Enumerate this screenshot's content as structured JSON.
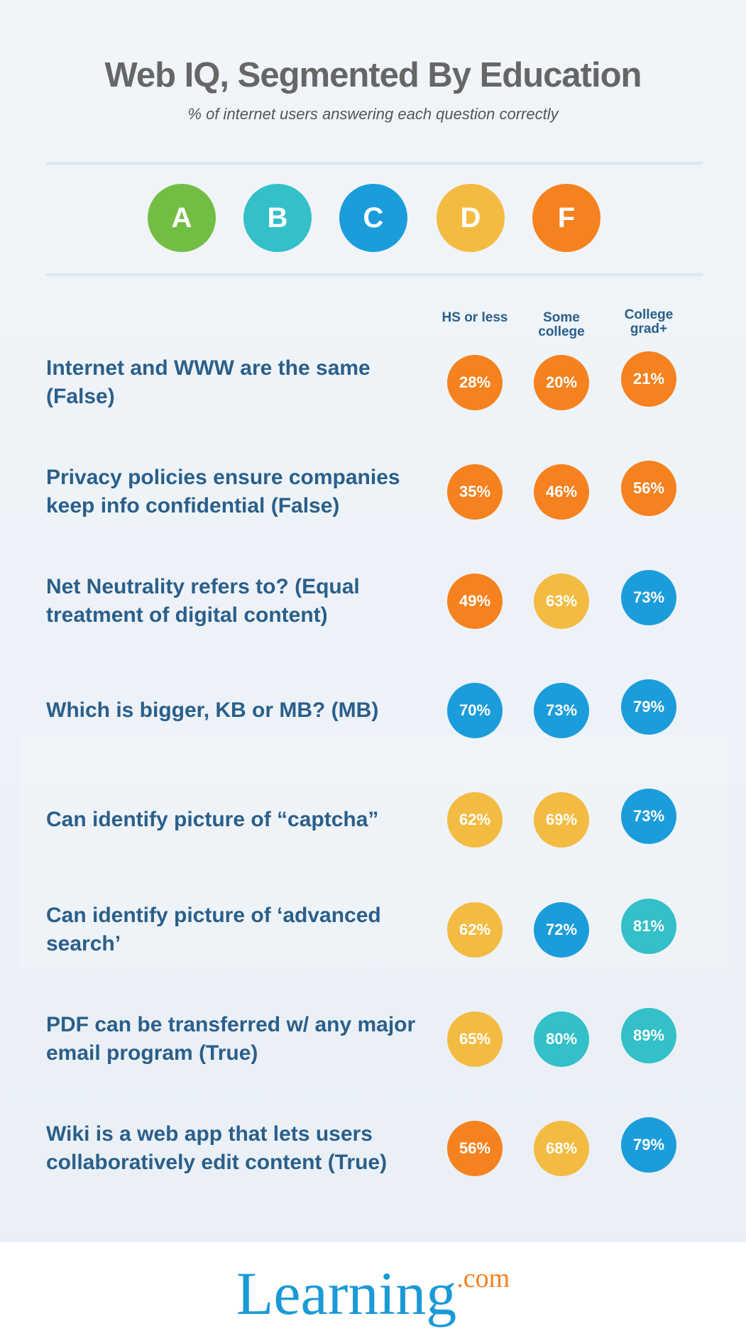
{
  "header": {
    "title": "Web IQ, Segmented By Education",
    "subtitle": "% of internet users answering each question correctly"
  },
  "legend": [
    {
      "label": "A",
      "color": "#72be44"
    },
    {
      "label": "B",
      "color": "#33c0c8"
    },
    {
      "label": "C",
      "color": "#1c9ddb"
    },
    {
      "label": "D",
      "color": "#f4bb42"
    },
    {
      "label": "F",
      "color": "#f5821f"
    }
  ],
  "table": {
    "columns": [
      "HS or less",
      "Some college",
      "College grad+"
    ],
    "rows": [
      {
        "question": "Internet and WWW are the same (False)",
        "cells": [
          {
            "text": "28%",
            "color": "#f5821f"
          },
          {
            "text": "20%",
            "color": "#f5821f"
          },
          {
            "text": "21%",
            "color": "#f5821f"
          }
        ]
      },
      {
        "question": "Privacy policies ensure companies keep info confidential (False)",
        "cells": [
          {
            "text": "35%",
            "color": "#f5821f"
          },
          {
            "text": "46%",
            "color": "#f5821f"
          },
          {
            "text": "56%",
            "color": "#f5821f"
          }
        ]
      },
      {
        "question": "Net Neutrality refers to? (Equal treatment of digital content)",
        "cells": [
          {
            "text": "49%",
            "color": "#f5821f"
          },
          {
            "text": "63%",
            "color": "#f4bb42"
          },
          {
            "text": "73%",
            "color": "#1c9ddb"
          }
        ]
      },
      {
        "question": "Which is bigger, KB or MB? (MB)",
        "cells": [
          {
            "text": "70%",
            "color": "#1c9ddb"
          },
          {
            "text": "73%",
            "color": "#1c9ddb"
          },
          {
            "text": "79%",
            "color": "#1c9ddb"
          }
        ]
      },
      {
        "question": "Can identify picture of “captcha”",
        "cells": [
          {
            "text": "62%",
            "color": "#f4bb42"
          },
          {
            "text": "69%",
            "color": "#f4bb42"
          },
          {
            "text": "73%",
            "color": "#1c9ddb"
          }
        ]
      },
      {
        "question": "Can identify picture of ‘advanced search’",
        "cells": [
          {
            "text": "62%",
            "color": "#f4bb42"
          },
          {
            "text": "72%",
            "color": "#1c9ddb"
          },
          {
            "text": "81%",
            "color": "#33c0c8"
          }
        ]
      },
      {
        "question": "PDF can be transferred w/ any major email program (True)",
        "cells": [
          {
            "text": "65%",
            "color": "#f4bb42"
          },
          {
            "text": "80%",
            "color": "#33c0c8"
          },
          {
            "text": "89%",
            "color": "#33c0c8"
          }
        ]
      },
      {
        "question": "Wiki is a web app that lets users collaboratively edit content (True)",
        "cells": [
          {
            "text": "56%",
            "color": "#f5821f"
          },
          {
            "text": "68%",
            "color": "#f4bb42"
          },
          {
            "text": "79%",
            "color": "#1c9ddb"
          }
        ]
      }
    ]
  },
  "footer": {
    "logo": "Learning",
    "logo_suffix": ".com"
  }
}
